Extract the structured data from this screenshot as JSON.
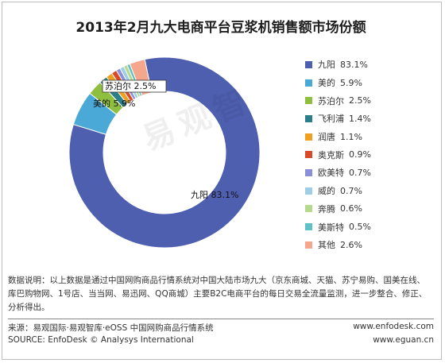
{
  "title": "2013年2月九大电商平台豆浆机销售额市场份额",
  "watermark": "易观智",
  "chart_data": {
    "type": "pie",
    "subtype": "donut",
    "categories": [
      "九阳",
      "美的",
      "苏泊尔",
      "飞利浦",
      "润唐",
      "奥克斯",
      "欧美特",
      "威的",
      "奔腾",
      "美斯特",
      "其他"
    ],
    "values": [
      83.1,
      5.9,
      2.5,
      1.4,
      1.1,
      0.9,
      0.7,
      0.7,
      0.6,
      0.5,
      2.6
    ],
    "value_labels": [
      "83.1%",
      "5.9%",
      "2.5%",
      "1.4%",
      "1.1%",
      "0.9%",
      "0.7%",
      "0.7%",
      "0.6%",
      "0.5%",
      "2.6%"
    ],
    "colors": [
      "#4f5fb0",
      "#4aa9d6",
      "#8fbf3f",
      "#2a7f8a",
      "#f0a020",
      "#d84a28",
      "#8b8fd8",
      "#9fcfe6",
      "#b6da8c",
      "#5fc0c6",
      "#f5a78e"
    ],
    "legend_position": "right",
    "data_labels": [
      {
        "name": "九阳",
        "value": "83.1%"
      },
      {
        "name": "美的",
        "value": "5.9%"
      },
      {
        "name": "苏泊尔",
        "value": "2.5%"
      }
    ]
  },
  "note": "数据说明：以上数据是通过中国网购商品行情系统对中国大陆市场九大（京东商城、天猫、苏宁易购、国美在线、库巴购物网、1号店、当当网、易迅网、QQ商城）主要B2C电商平台的每日交易全流量监测，进一步整合、修正、分析得出。",
  "footer": {
    "source_cn": "来源：易观国际·易观智库·eOSS 中国网购商品行情系统",
    "source_en": "SOURCE:  EnfoDesk © Analysys International",
    "site1": "www.enfodesk.com",
    "site2": "www.eguan.cn"
  }
}
